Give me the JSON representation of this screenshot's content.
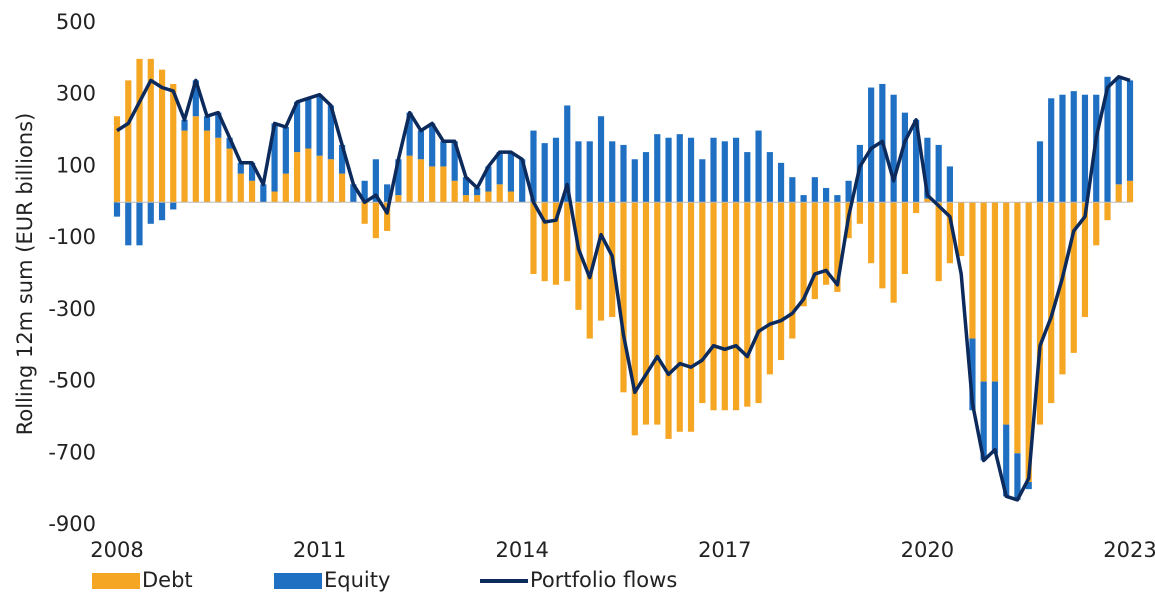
{
  "chart_data": {
    "type": "bar",
    "stacked": true,
    "ylabel": "Rolling 12m sum (EUR billions)",
    "ylim": [
      -900,
      500
    ],
    "yticks": [
      -900,
      -700,
      -500,
      -300,
      -100,
      100,
      300,
      500
    ],
    "xlim": [
      2008,
      2023
    ],
    "xticks": [
      2008,
      2011,
      2014,
      2017,
      2020,
      2023
    ],
    "x": [
      2008,
      2008.167,
      2008.333,
      2008.5,
      2008.667,
      2008.833,
      2009,
      2009.167,
      2009.333,
      2009.5,
      2009.667,
      2009.833,
      2010,
      2010.167,
      2010.333,
      2010.5,
      2010.667,
      2010.833,
      2011,
      2011.167,
      2011.333,
      2011.5,
      2011.667,
      2011.833,
      2012,
      2012.167,
      2012.333,
      2012.5,
      2012.667,
      2012.833,
      2013,
      2013.167,
      2013.333,
      2013.5,
      2013.667,
      2013.833,
      2014,
      2014.167,
      2014.333,
      2014.5,
      2014.667,
      2014.833,
      2015,
      2015.167,
      2015.333,
      2015.5,
      2015.667,
      2015.833,
      2016,
      2016.167,
      2016.333,
      2016.5,
      2016.667,
      2016.833,
      2017,
      2017.167,
      2017.333,
      2017.5,
      2017.667,
      2017.833,
      2018,
      2018.167,
      2018.333,
      2018.5,
      2018.667,
      2018.833,
      2019,
      2019.167,
      2019.333,
      2019.5,
      2019.667,
      2019.833,
      2020,
      2020.167,
      2020.333,
      2020.5,
      2020.667,
      2020.833,
      2021,
      2021.167,
      2021.333,
      2021.5,
      2021.667,
      2021.833,
      2022,
      2022.167,
      2022.333,
      2022.5,
      2022.667,
      2022.833,
      2023
    ],
    "series": [
      {
        "name": "Debt",
        "color": "#f5a623",
        "values": [
          240,
          340,
          400,
          400,
          370,
          330,
          200,
          240,
          200,
          180,
          150,
          80,
          60,
          0,
          30,
          80,
          140,
          150,
          130,
          120,
          80,
          0,
          -60,
          -100,
          -80,
          20,
          130,
          120,
          100,
          100,
          60,
          20,
          20,
          30,
          50,
          30,
          0,
          -200,
          -220,
          -230,
          -220,
          -300,
          -380,
          -330,
          -320,
          -530,
          -650,
          -620,
          -620,
          -660,
          -640,
          -640,
          -560,
          -580,
          -580,
          -580,
          -570,
          -560,
          -480,
          -440,
          -380,
          -290,
          -270,
          -230,
          -250,
          -100,
          -60,
          -170,
          -240,
          -280,
          -200,
          -30,
          10,
          -220,
          -170,
          -150,
          -380,
          -500,
          -500,
          -620,
          -700,
          -780,
          -620,
          -560,
          -480,
          -420,
          -320,
          -120,
          -50,
          50,
          60
        ]
      },
      {
        "name": "Equity",
        "color": "#1f6fc2",
        "values": [
          -40,
          -120,
          -120,
          -60,
          -50,
          -20,
          30,
          100,
          40,
          70,
          30,
          30,
          50,
          50,
          190,
          130,
          140,
          140,
          170,
          150,
          80,
          50,
          60,
          120,
          50,
          100,
          120,
          80,
          120,
          70,
          110,
          50,
          20,
          70,
          90,
          110,
          120,
          200,
          165,
          180,
          270,
          170,
          170,
          240,
          170,
          160,
          120,
          140,
          190,
          180,
          190,
          180,
          120,
          180,
          170,
          180,
          140,
          200,
          140,
          110,
          70,
          20,
          70,
          40,
          20,
          60,
          160,
          320,
          330,
          300,
          250,
          230,
          170,
          160,
          100,
          0,
          -200,
          -220,
          -200,
          -200,
          -130,
          -20,
          170,
          290,
          300,
          310,
          300,
          300,
          350,
          300,
          280
        ]
      },
      {
        "name": "Portfolio flows",
        "type": "line",
        "color": "#0c2a5b",
        "values": [
          200,
          220,
          280,
          340,
          320,
          310,
          230,
          340,
          240,
          250,
          180,
          110,
          110,
          50,
          220,
          210,
          280,
          290,
          300,
          270,
          160,
          50,
          0,
          20,
          -30,
          120,
          250,
          200,
          220,
          170,
          170,
          70,
          40,
          100,
          140,
          140,
          120,
          0,
          -55,
          -50,
          50,
          -130,
          -210,
          -90,
          -150,
          -370,
          -530,
          -480,
          -430,
          -480,
          -450,
          -460,
          -440,
          -400,
          -410,
          -400,
          -430,
          -360,
          -340,
          -330,
          -310,
          -270,
          -200,
          -190,
          -230,
          -40,
          100,
          150,
          170,
          60,
          170,
          230,
          20,
          -10,
          -40,
          -200,
          -560,
          -720,
          -690,
          -820,
          -830,
          -770,
          -400,
          -320,
          -210,
          -80,
          -40,
          180,
          320,
          350,
          340
        ]
      }
    ]
  }
}
